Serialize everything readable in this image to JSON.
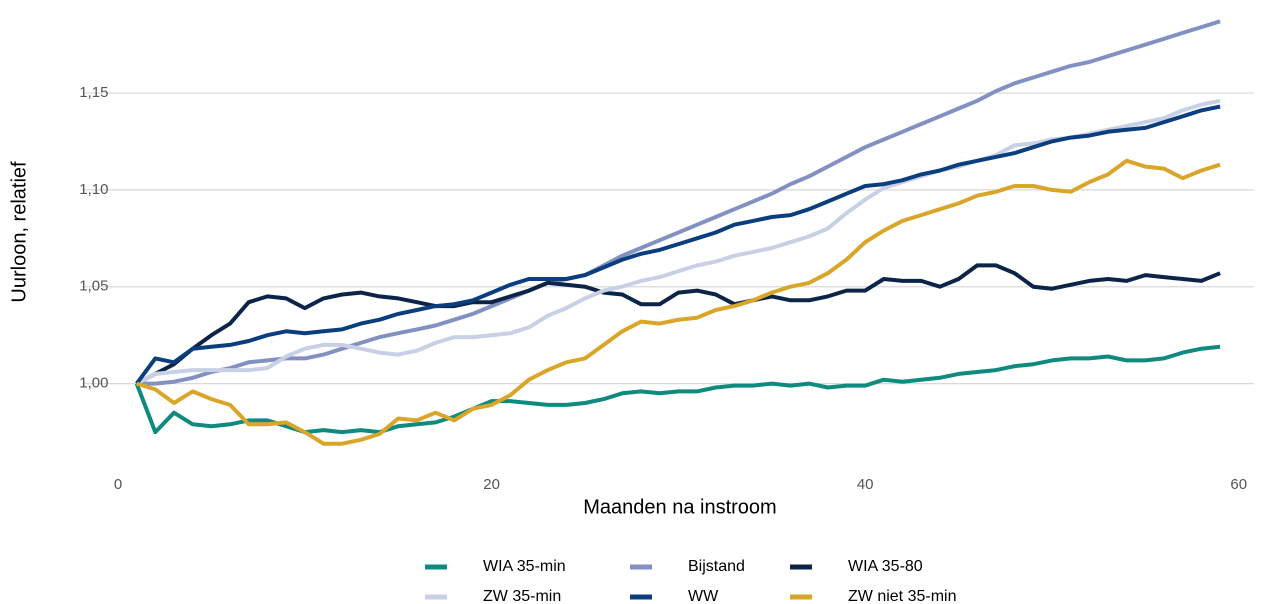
{
  "chart_data": {
    "type": "line",
    "xlabel": "Maanden na instroom",
    "ylabel": "Uurloon, relatief",
    "x": [
      1,
      2,
      3,
      4,
      5,
      6,
      7,
      8,
      9,
      10,
      11,
      12,
      13,
      14,
      15,
      16,
      17,
      18,
      19,
      20,
      21,
      22,
      23,
      24,
      25,
      26,
      27,
      28,
      29,
      30,
      31,
      32,
      33,
      34,
      35,
      36,
      37,
      38,
      39,
      40,
      41,
      42,
      43,
      44,
      45,
      46,
      47,
      48,
      49,
      50,
      51,
      52,
      53,
      54,
      55,
      56,
      57,
      58,
      59
    ],
    "xlim": [
      -1.9,
      60.8
    ],
    "xticks": [
      0,
      20,
      40,
      60
    ],
    "ylim": [
      0.958,
      1.198
    ],
    "yticks": [
      {
        "value": 1.0,
        "label": "1,00"
      },
      {
        "value": 1.05,
        "label": "1,05"
      },
      {
        "value": 1.1,
        "label": "1,10"
      },
      {
        "value": 1.15,
        "label": "1,15"
      }
    ],
    "grid": true,
    "legend": "bottom",
    "series": [
      {
        "name": "WIA 35-min",
        "color": "#0e8a7e",
        "values": [
          1.0,
          0.975,
          0.985,
          0.979,
          0.978,
          0.979,
          0.981,
          0.981,
          0.978,
          0.975,
          0.976,
          0.975,
          0.976,
          0.975,
          0.978,
          0.979,
          0.98,
          0.983,
          0.987,
          0.991,
          0.991,
          0.99,
          0.989,
          0.989,
          0.99,
          0.992,
          0.995,
          0.996,
          0.995,
          0.996,
          0.996,
          0.998,
          0.999,
          0.999,
          1.0,
          0.999,
          1.0,
          0.998,
          0.999,
          0.999,
          1.002,
          1.001,
          1.002,
          1.003,
          1.005,
          1.006,
          1.007,
          1.009,
          1.01,
          1.012,
          1.013,
          1.013,
          1.014,
          1.012,
          1.012,
          1.013,
          1.016,
          1.018,
          1.019
        ]
      },
      {
        "name": "Bijstand",
        "color": "#8391c2",
        "values": [
          1.0,
          1.0,
          1.001,
          1.003,
          1.006,
          1.008,
          1.011,
          1.012,
          1.013,
          1.013,
          1.015,
          1.018,
          1.021,
          1.024,
          1.026,
          1.028,
          1.03,
          1.033,
          1.036,
          1.04,
          1.044,
          1.048,
          1.052,
          1.054,
          1.056,
          1.061,
          1.066,
          1.07,
          1.074,
          1.078,
          1.082,
          1.086,
          1.09,
          1.094,
          1.098,
          1.103,
          1.107,
          1.112,
          1.117,
          1.122,
          1.126,
          1.13,
          1.134,
          1.138,
          1.142,
          1.146,
          1.151,
          1.155,
          1.158,
          1.161,
          1.164,
          1.166,
          1.169,
          1.172,
          1.175,
          1.178,
          1.181,
          1.184,
          1.187
        ]
      },
      {
        "name": "WIA 35-80",
        "color": "#0b2447",
        "values": [
          1.0,
          1.005,
          1.01,
          1.018,
          1.025,
          1.031,
          1.042,
          1.045,
          1.044,
          1.039,
          1.044,
          1.046,
          1.047,
          1.045,
          1.044,
          1.042,
          1.04,
          1.04,
          1.042,
          1.042,
          1.045,
          1.048,
          1.052,
          1.051,
          1.05,
          1.047,
          1.046,
          1.041,
          1.041,
          1.047,
          1.048,
          1.046,
          1.041,
          1.043,
          1.045,
          1.043,
          1.043,
          1.045,
          1.048,
          1.048,
          1.054,
          1.053,
          1.053,
          1.05,
          1.054,
          1.061,
          1.061,
          1.057,
          1.05,
          1.049,
          1.051,
          1.053,
          1.054,
          1.053,
          1.056,
          1.055,
          1.054,
          1.053,
          1.057
        ]
      },
      {
        "name": "ZW 35-min",
        "color": "#c8d0e6",
        "values": [
          1.0,
          1.005,
          1.006,
          1.007,
          1.007,
          1.007,
          1.007,
          1.008,
          1.014,
          1.018,
          1.02,
          1.02,
          1.018,
          1.016,
          1.015,
          1.017,
          1.021,
          1.024,
          1.024,
          1.025,
          1.026,
          1.029,
          1.035,
          1.039,
          1.044,
          1.048,
          1.05,
          1.053,
          1.055,
          1.058,
          1.061,
          1.063,
          1.066,
          1.068,
          1.07,
          1.073,
          1.076,
          1.08,
          1.088,
          1.095,
          1.101,
          1.104,
          1.107,
          1.11,
          1.112,
          1.115,
          1.118,
          1.123,
          1.124,
          1.126,
          1.127,
          1.129,
          1.131,
          1.133,
          1.135,
          1.137,
          1.141,
          1.144,
          1.146
        ]
      },
      {
        "name": "WW",
        "color": "#0b3e7e",
        "values": [
          1.0,
          1.013,
          1.011,
          1.018,
          1.019,
          1.02,
          1.022,
          1.025,
          1.027,
          1.026,
          1.027,
          1.028,
          1.031,
          1.033,
          1.036,
          1.038,
          1.04,
          1.041,
          1.043,
          1.047,
          1.051,
          1.054,
          1.054,
          1.054,
          1.056,
          1.06,
          1.064,
          1.067,
          1.069,
          1.072,
          1.075,
          1.078,
          1.082,
          1.084,
          1.086,
          1.087,
          1.09,
          1.094,
          1.098,
          1.102,
          1.103,
          1.105,
          1.108,
          1.11,
          1.113,
          1.115,
          1.117,
          1.119,
          1.122,
          1.125,
          1.127,
          1.128,
          1.13,
          1.131,
          1.132,
          1.135,
          1.138,
          1.141,
          1.143
        ]
      },
      {
        "name": "ZW niet 35-min",
        "color": "#d9a62a",
        "values": [
          1.0,
          0.997,
          0.99,
          0.996,
          0.992,
          0.989,
          0.979,
          0.979,
          0.98,
          0.975,
          0.969,
          0.969,
          0.971,
          0.974,
          0.982,
          0.981,
          0.985,
          0.981,
          0.987,
          0.989,
          0.994,
          1.002,
          1.007,
          1.011,
          1.013,
          1.02,
          1.027,
          1.032,
          1.031,
          1.033,
          1.034,
          1.038,
          1.04,
          1.043,
          1.047,
          1.05,
          1.052,
          1.057,
          1.064,
          1.073,
          1.079,
          1.084,
          1.087,
          1.09,
          1.093,
          1.097,
          1.099,
          1.102,
          1.102,
          1.1,
          1.099,
          1.104,
          1.108,
          1.115,
          1.112,
          1.111,
          1.106,
          1.11,
          1.113
        ]
      }
    ]
  }
}
